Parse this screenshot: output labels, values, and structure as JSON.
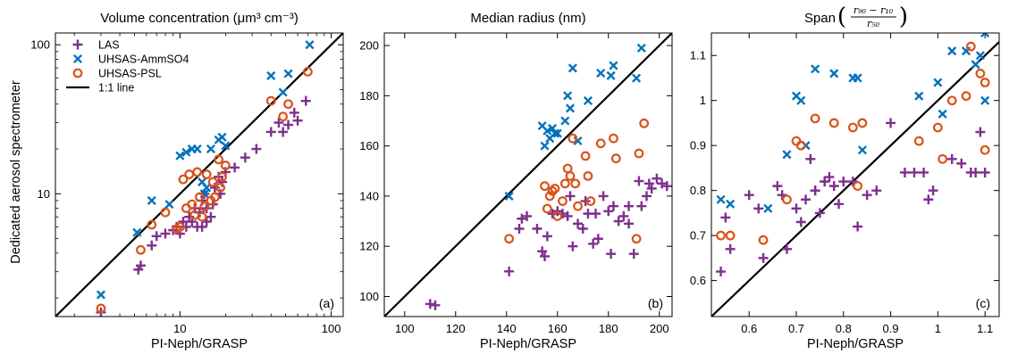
{
  "figure": {
    "ylabel": "Dedicated aerosol spectrometer"
  },
  "chart_data": [
    {
      "type": "scatter",
      "scale": "log",
      "title": "Volume concentration (μm³ cm⁻³)",
      "xlabel": "PI-Neph/GRASP",
      "panel_label": "(a)",
      "xlim": [
        1.5,
        120
      ],
      "ylim": [
        1.5,
        120
      ],
      "xticks": [
        10,
        100
      ],
      "yticks": [
        10,
        100
      ],
      "xtick_labels": [
        "10",
        "100"
      ],
      "ytick_labels": [
        "10",
        "100"
      ],
      "legend": {
        "position": "top-left",
        "entries": [
          "LAS",
          "UHSAS-AmmSO4",
          "UHSAS-PSL",
          "1:1 line"
        ]
      },
      "reference_line": "1:1 line",
      "series": [
        {
          "name": "LAS",
          "marker": "plus",
          "color": "#7e2f8e",
          "points": [
            [
              3,
              1.6
            ],
            [
              5.3,
              3.1
            ],
            [
              5.5,
              3.3
            ],
            [
              6.5,
              4.5
            ],
            [
              7,
              5.2
            ],
            [
              8,
              5.4
            ],
            [
              9,
              5.7
            ],
            [
              9.5,
              6
            ],
            [
              10,
              5.4
            ],
            [
              10.5,
              6.5
            ],
            [
              11,
              6
            ],
            [
              11.5,
              7
            ],
            [
              12,
              6.5
            ],
            [
              12.5,
              8
            ],
            [
              13,
              6
            ],
            [
              13.5,
              7.5
            ],
            [
              14,
              6
            ],
            [
              14,
              9
            ],
            [
              14.5,
              10
            ],
            [
              15,
              8
            ],
            [
              15,
              6.5
            ],
            [
              16,
              7
            ],
            [
              16.5,
              8.5
            ],
            [
              17,
              11
            ],
            [
              18,
              13
            ],
            [
              18.5,
              10
            ],
            [
              19,
              12
            ],
            [
              20,
              14
            ],
            [
              23,
              15
            ],
            [
              27,
              17.5
            ],
            [
              32,
              20
            ],
            [
              40,
              26
            ],
            [
              45,
              30
            ],
            [
              48,
              26
            ],
            [
              52,
              29
            ],
            [
              57,
              35
            ],
            [
              60,
              31
            ],
            [
              68,
              42
            ]
          ]
        },
        {
          "name": "UHSAS-AmmSO4",
          "marker": "x",
          "color": "#0072bd",
          "points": [
            [
              3,
              2.1
            ],
            [
              5.2,
              5.5
            ],
            [
              6.5,
              9
            ],
            [
              8.5,
              8.5
            ],
            [
              10,
              18
            ],
            [
              11,
              19
            ],
            [
              12,
              20
            ],
            [
              13,
              20
            ],
            [
              14,
              12
            ],
            [
              14.5,
              10
            ],
            [
              15,
              11
            ],
            [
              16,
              20
            ],
            [
              18,
              23
            ],
            [
              19,
              24
            ],
            [
              20,
              21
            ],
            [
              40,
              62
            ],
            [
              48,
              48
            ],
            [
              52,
              64
            ],
            [
              72,
              100
            ]
          ]
        },
        {
          "name": "UHSAS-PSL",
          "marker": "circle",
          "color": "#d95319",
          "points": [
            [
              3,
              1.7
            ],
            [
              5.5,
              4.2
            ],
            [
              6.5,
              6.2
            ],
            [
              8,
              7.5
            ],
            [
              9.5,
              5.8
            ],
            [
              10,
              6
            ],
            [
              10.5,
              12.5
            ],
            [
              11,
              8
            ],
            [
              11.5,
              13.5
            ],
            [
              12,
              8.5
            ],
            [
              12.5,
              7.2
            ],
            [
              13,
              14
            ],
            [
              13.5,
              9.5
            ],
            [
              14,
              7
            ],
            [
              14.5,
              8.2
            ],
            [
              15,
              13.5
            ],
            [
              16,
              9
            ],
            [
              16.5,
              12
            ],
            [
              17,
              9.5
            ],
            [
              18,
              17
            ],
            [
              18.5,
              11
            ],
            [
              19,
              13
            ],
            [
              20,
              15.5
            ],
            [
              40,
              42
            ],
            [
              48,
              33
            ],
            [
              52,
              40
            ],
            [
              70,
              66
            ]
          ]
        }
      ]
    },
    {
      "type": "scatter",
      "scale": "linear",
      "title": "Median radius (nm)",
      "xlabel": "PI-Neph/GRASP",
      "panel_label": "(b)",
      "xlim": [
        92,
        205
      ],
      "ylim": [
        92,
        205
      ],
      "xticks": [
        100,
        120,
        140,
        160,
        180,
        200
      ],
      "yticks": [
        100,
        120,
        140,
        160,
        180,
        200
      ],
      "xtick_labels": [
        "100",
        "120",
        "140",
        "160",
        "180",
        "200"
      ],
      "ytick_labels": [
        "100",
        "120",
        "140",
        "160",
        "180",
        "200"
      ],
      "reference_line": "1:1 line",
      "series": [
        {
          "name": "LAS",
          "marker": "plus",
          "color": "#7e2f8e",
          "points": [
            [
              110,
              97
            ],
            [
              112,
              96.5
            ],
            [
              141,
              110
            ],
            [
              145,
              127
            ],
            [
              146,
              131
            ],
            [
              148,
              132
            ],
            [
              152,
              127
            ],
            [
              154,
              118
            ],
            [
              155,
              116
            ],
            [
              156,
              124
            ],
            [
              158,
              133
            ],
            [
              160,
              134
            ],
            [
              162,
              133
            ],
            [
              164,
              132
            ],
            [
              166,
              120
            ],
            [
              168,
              129
            ],
            [
              170,
              127
            ],
            [
              172,
              133
            ],
            [
              174,
              121
            ],
            [
              176,
              123
            ],
            [
              178,
              140
            ],
            [
              180,
              134
            ],
            [
              181,
              117
            ],
            [
              182,
              136
            ],
            [
              184,
              130
            ],
            [
              186,
              132
            ],
            [
              188,
              136
            ],
            [
              190,
              117
            ],
            [
              192,
              146
            ],
            [
              195,
              140
            ],
            [
              197,
              143
            ],
            [
              199,
              147
            ],
            [
              201,
              145
            ],
            [
              203,
              144
            ],
            [
              175,
              133
            ],
            [
              171,
              138
            ],
            [
              188,
              129
            ],
            [
              193,
              136
            ],
            [
              196,
              145
            ],
            [
              165,
              140
            ]
          ]
        },
        {
          "name": "UHSAS-AmmSO4",
          "marker": "x",
          "color": "#0072bd",
          "points": [
            [
              141,
              140
            ],
            [
              154,
              168
            ],
            [
              155,
              160
            ],
            [
              156,
              166
            ],
            [
              157,
              163
            ],
            [
              158,
              167
            ],
            [
              159,
              165
            ],
            [
              160,
              165
            ],
            [
              163,
              170
            ],
            [
              164,
              180
            ],
            [
              165,
              175
            ],
            [
              166,
              191
            ],
            [
              172,
              178
            ],
            [
              177,
              189
            ],
            [
              181,
              188
            ],
            [
              182,
              192
            ],
            [
              191,
              187
            ],
            [
              193,
              199
            ],
            [
              168,
              162
            ]
          ]
        },
        {
          "name": "UHSAS-PSL",
          "marker": "circle",
          "color": "#d95319",
          "points": [
            [
              141,
              123
            ],
            [
              155,
              144
            ],
            [
              156,
              135
            ],
            [
              157,
              140
            ],
            [
              158,
              142
            ],
            [
              159,
              143
            ],
            [
              160,
              132
            ],
            [
              162,
              138
            ],
            [
              163,
              145
            ],
            [
              164,
              151
            ],
            [
              165,
              148
            ],
            [
              166,
              163
            ],
            [
              167,
              145
            ],
            [
              168,
              136
            ],
            [
              171,
              156
            ],
            [
              172,
              148
            ],
            [
              173,
              138
            ],
            [
              177,
              161
            ],
            [
              182,
              163
            ],
            [
              183,
              155
            ],
            [
              191,
              123
            ],
            [
              192,
              157
            ],
            [
              194,
              169
            ]
          ]
        }
      ]
    },
    {
      "type": "scatter",
      "scale": "linear",
      "title": "Span",
      "title_math": {
        "lhs": "Span",
        "numerator": "r₉₀ − r₁₀",
        "denominator": "r₅₀"
      },
      "xlabel": "PI-Neph/GRASP",
      "panel_label": "(c)",
      "xlim": [
        0.52,
        1.13
      ],
      "ylim": [
        0.52,
        1.15
      ],
      "xticks": [
        0.6,
        0.7,
        0.8,
        0.9,
        1,
        1.1
      ],
      "yticks": [
        0.6,
        0.7,
        0.8,
        0.9,
        1,
        1.1
      ],
      "xtick_labels": [
        "0.6",
        "0.7",
        "0.8",
        "0.9",
        "1",
        "1.1"
      ],
      "ytick_labels": [
        "0.6",
        "0.7",
        "0.8",
        "0.9",
        "1",
        "1.1"
      ],
      "reference_line": "1:1 line",
      "series": [
        {
          "name": "LAS",
          "marker": "plus",
          "color": "#7e2f8e",
          "points": [
            [
              0.54,
              0.62
            ],
            [
              0.55,
              0.74
            ],
            [
              0.56,
              0.67
            ],
            [
              0.6,
              0.79
            ],
            [
              0.62,
              0.76
            ],
            [
              0.63,
              0.65
            ],
            [
              0.66,
              0.81
            ],
            [
              0.67,
              0.79
            ],
            [
              0.68,
              0.67
            ],
            [
              0.7,
              0.76
            ],
            [
              0.71,
              0.73
            ],
            [
              0.72,
              0.78
            ],
            [
              0.73,
              0.87
            ],
            [
              0.74,
              0.8
            ],
            [
              0.75,
              0.75
            ],
            [
              0.76,
              0.82
            ],
            [
              0.77,
              0.83
            ],
            [
              0.78,
              0.81
            ],
            [
              0.79,
              0.77
            ],
            [
              0.8,
              0.82
            ],
            [
              0.82,
              0.82
            ],
            [
              0.83,
              0.72
            ],
            [
              0.85,
              0.79
            ],
            [
              0.87,
              0.8
            ],
            [
              0.9,
              0.95
            ],
            [
              0.93,
              0.84
            ],
            [
              0.95,
              0.84
            ],
            [
              0.98,
              0.78
            ],
            [
              0.99,
              0.8
            ],
            [
              1.03,
              0.87
            ],
            [
              1.05,
              0.86
            ],
            [
              1.07,
              0.84
            ],
            [
              1.08,
              0.84
            ],
            [
              1.09,
              0.93
            ],
            [
              1.1,
              0.84
            ],
            [
              0.74,
              0.8
            ],
            [
              0.76,
              0.82
            ],
            [
              0.97,
              0.84
            ]
          ]
        },
        {
          "name": "UHSAS-AmmSO4",
          "marker": "x",
          "color": "#0072bd",
          "points": [
            [
              0.54,
              0.78
            ],
            [
              0.56,
              0.77
            ],
            [
              0.64,
              0.76
            ],
            [
              0.68,
              0.88
            ],
            [
              0.7,
              1.01
            ],
            [
              0.71,
              1.0
            ],
            [
              0.72,
              0.9
            ],
            [
              0.74,
              1.07
            ],
            [
              0.78,
              1.06
            ],
            [
              0.82,
              1.05
            ],
            [
              0.83,
              1.05
            ],
            [
              0.84,
              0.89
            ],
            [
              0.96,
              1.01
            ],
            [
              1.0,
              1.04
            ],
            [
              1.01,
              0.97
            ],
            [
              1.03,
              1.11
            ],
            [
              1.06,
              1.11
            ],
            [
              1.08,
              1.08
            ],
            [
              1.09,
              1.1
            ],
            [
              1.1,
              1.15
            ],
            [
              1.1,
              1.0
            ]
          ]
        },
        {
          "name": "UHSAS-PSL",
          "marker": "circle",
          "color": "#d95319",
          "points": [
            [
              0.54,
              0.7
            ],
            [
              0.56,
              0.7
            ],
            [
              0.63,
              0.69
            ],
            [
              0.68,
              0.78
            ],
            [
              0.7,
              0.91
            ],
            [
              0.71,
              0.9
            ],
            [
              0.74,
              0.96
            ],
            [
              0.78,
              0.95
            ],
            [
              0.82,
              0.94
            ],
            [
              0.84,
              0.95
            ],
            [
              0.83,
              0.81
            ],
            [
              0.96,
              0.91
            ],
            [
              1.0,
              0.94
            ],
            [
              1.01,
              0.87
            ],
            [
              1.03,
              1.0
            ],
            [
              1.06,
              1.01
            ],
            [
              1.07,
              1.12
            ],
            [
              1.09,
              1.06
            ],
            [
              1.1,
              1.04
            ],
            [
              1.1,
              0.89
            ]
          ]
        }
      ]
    }
  ]
}
